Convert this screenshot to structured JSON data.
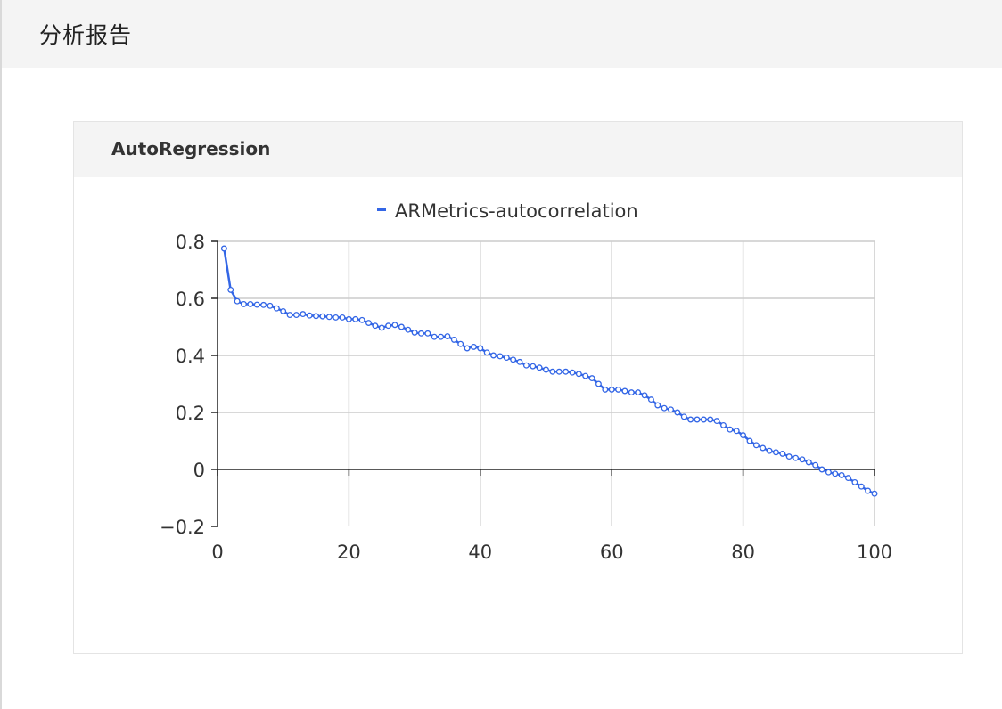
{
  "page": {
    "title": "分析报告"
  },
  "card": {
    "title": "AutoRegression"
  },
  "colors": {
    "series": "#3366e6",
    "grid": "#cccccc",
    "axis": "#222222"
  },
  "chart_data": {
    "type": "line",
    "title": "",
    "xlabel": "",
    "ylabel": "",
    "legend": "top-center",
    "grid": true,
    "xlim": [
      0,
      100
    ],
    "ylim": [
      -0.2,
      0.8
    ],
    "x_ticks": [
      0,
      20,
      40,
      60,
      80,
      100
    ],
    "y_ticks": [
      -0.2,
      0,
      0.2,
      0.4,
      0.6,
      0.8
    ],
    "x_tick_labels": [
      "0",
      "20",
      "40",
      "60",
      "80",
      "100"
    ],
    "y_tick_labels": [
      "−0.2",
      "0",
      "0.2",
      "0.4",
      "0.6",
      "0.8"
    ],
    "series": [
      {
        "name": "ARMetrics-autocorrelation",
        "x": [
          1,
          2,
          3,
          4,
          5,
          6,
          7,
          8,
          9,
          10,
          11,
          12,
          13,
          14,
          15,
          16,
          17,
          18,
          19,
          20,
          21,
          22,
          23,
          24,
          25,
          26,
          27,
          28,
          29,
          30,
          31,
          32,
          33,
          34,
          35,
          36,
          37,
          38,
          39,
          40,
          41,
          42,
          43,
          44,
          45,
          46,
          47,
          48,
          49,
          50,
          51,
          52,
          53,
          54,
          55,
          56,
          57,
          58,
          59,
          60,
          61,
          62,
          63,
          64,
          65,
          66,
          67,
          68,
          69,
          70,
          71,
          72,
          73,
          74,
          75,
          76,
          77,
          78,
          79,
          80,
          81,
          82,
          83,
          84,
          85,
          86,
          87,
          88,
          89,
          90,
          91,
          92,
          93,
          94,
          95,
          96,
          97,
          98,
          99,
          100
        ],
        "values": [
          0.775,
          0.63,
          0.59,
          0.58,
          0.58,
          0.578,
          0.577,
          0.574,
          0.565,
          0.555,
          0.542,
          0.542,
          0.545,
          0.54,
          0.538,
          0.537,
          0.535,
          0.533,
          0.533,
          0.527,
          0.527,
          0.524,
          0.514,
          0.504,
          0.497,
          0.504,
          0.507,
          0.5,
          0.49,
          0.48,
          0.477,
          0.477,
          0.465,
          0.465,
          0.467,
          0.455,
          0.44,
          0.425,
          0.43,
          0.425,
          0.41,
          0.4,
          0.397,
          0.392,
          0.385,
          0.377,
          0.365,
          0.362,
          0.357,
          0.35,
          0.343,
          0.343,
          0.343,
          0.34,
          0.335,
          0.328,
          0.32,
          0.3,
          0.28,
          0.28,
          0.28,
          0.275,
          0.27,
          0.27,
          0.26,
          0.245,
          0.225,
          0.215,
          0.21,
          0.2,
          0.185,
          0.175,
          0.175,
          0.175,
          0.175,
          0.17,
          0.155,
          0.14,
          0.135,
          0.12,
          0.1,
          0.085,
          0.075,
          0.065,
          0.06,
          0.055,
          0.045,
          0.04,
          0.035,
          0.025,
          0.015,
          0.0,
          -0.01,
          -0.015,
          -0.02,
          -0.03,
          -0.045,
          -0.06,
          -0.075,
          -0.085
        ]
      }
    ]
  }
}
